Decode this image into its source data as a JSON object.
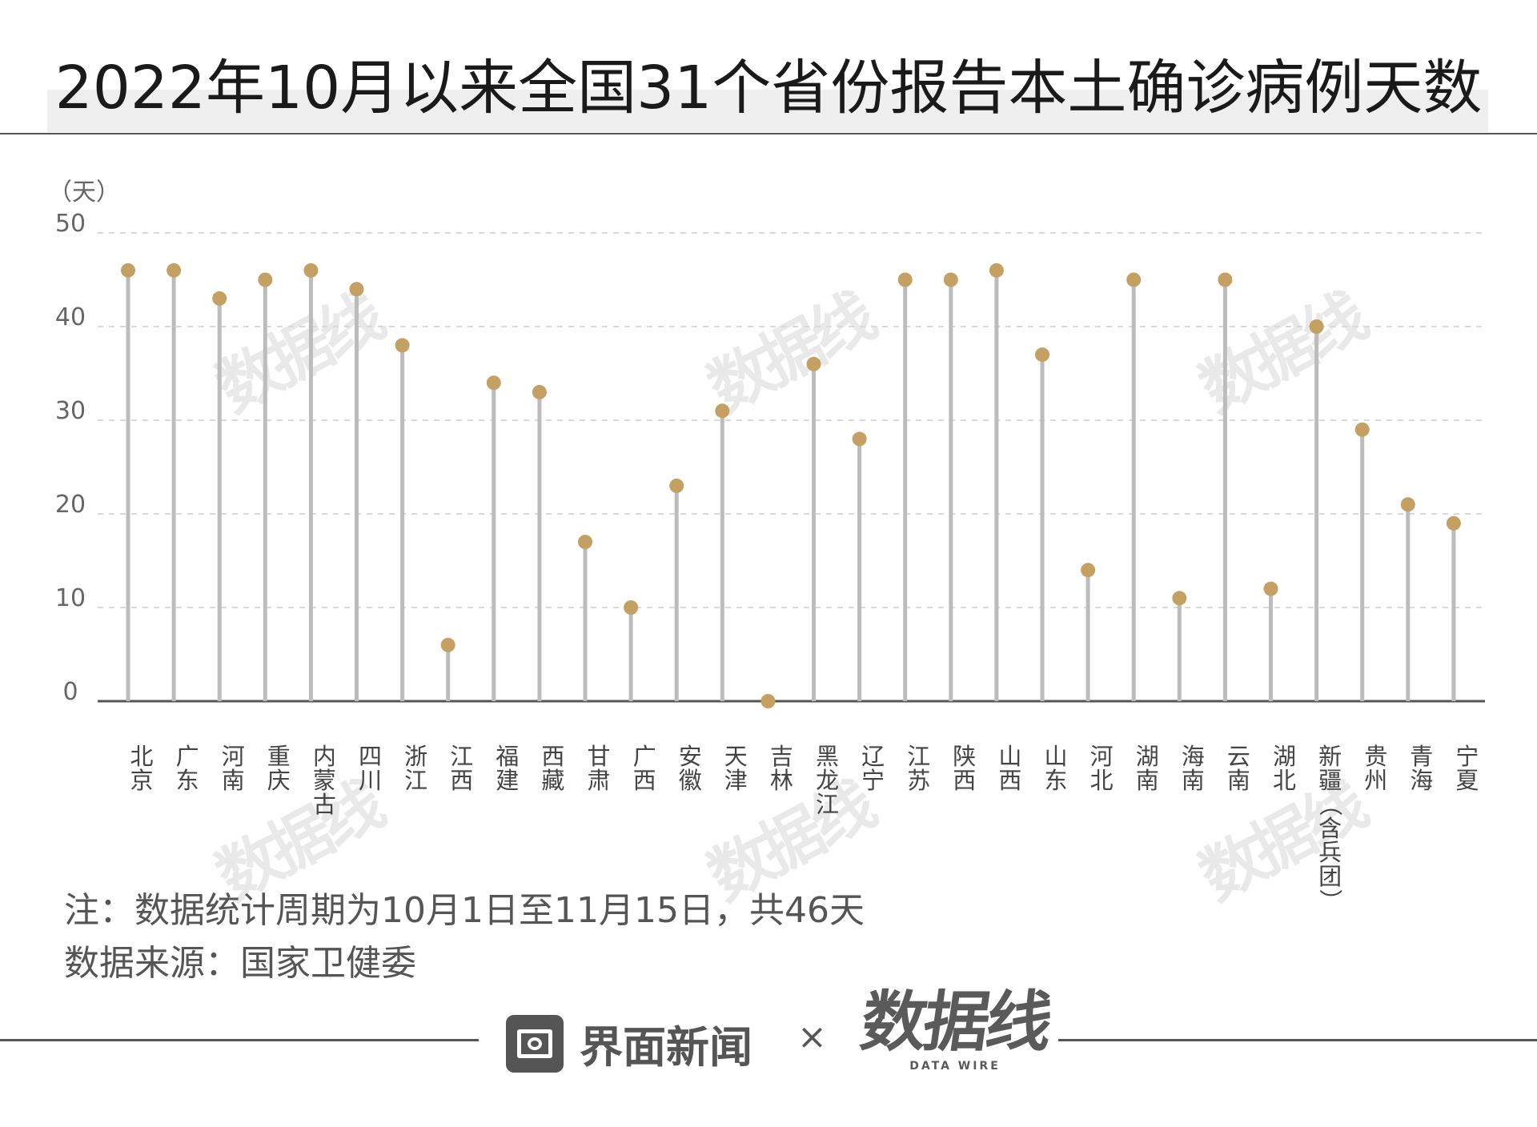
{
  "title": "2022年10月以来全国31个省份报告本土确诊病例天数",
  "chart_data": {
    "type": "lollipop",
    "unit_label": "（天）",
    "ylim": [
      0,
      50
    ],
    "yticks": [
      0,
      10,
      20,
      30,
      40,
      50
    ],
    "grid": true,
    "categories": [
      "北京",
      "广东",
      "河南",
      "重庆",
      "内蒙古",
      "四川",
      "浙江",
      "江西",
      "福建",
      "西藏",
      "甘肃",
      "广西",
      "安徽",
      "天津",
      "吉林",
      "黑龙江",
      "辽宁",
      "江苏",
      "陕西",
      "山西",
      "山东",
      "河北",
      "湖南",
      "海南",
      "云南",
      "湖北",
      "新疆（含兵团）",
      "贵州",
      "青海",
      "宁夏"
    ],
    "values": [
      46,
      46,
      43,
      45,
      46,
      44,
      38,
      6,
      34,
      33,
      17,
      10,
      23,
      31,
      0,
      36,
      28,
      45,
      45,
      46,
      37,
      14,
      45,
      11,
      45,
      12,
      40,
      29,
      21,
      19
    ],
    "colors": {
      "stem": "#bcbcbc",
      "dot": "#c4a062",
      "grid": "#d9d9d9",
      "axis": "#555555",
      "text": "#444444"
    }
  },
  "notes": {
    "line1": "注：数据统计周期为10月1日至11月15日，共46天",
    "line2": "数据来源：国家卫健委"
  },
  "footer": {
    "brand1": "界面新闻",
    "times": "×",
    "brand2": "数据线",
    "brand2_sub": "DATA WIRE"
  },
  "watermark": "数据线"
}
